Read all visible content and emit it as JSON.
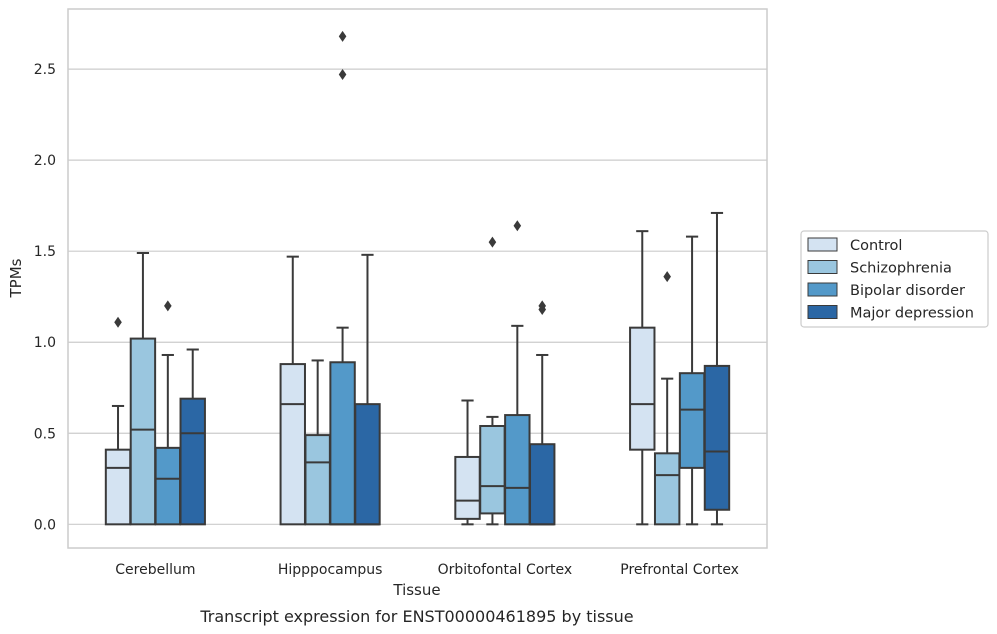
{
  "chart_data": {
    "type": "box",
    "title": "",
    "caption": "Transcript expression for ENST00000461895 by tissue",
    "xlabel": "Tissue",
    "ylabel": "TPMs",
    "ylim": [
      -0.13,
      2.83
    ],
    "yticks": [
      "0.0",
      "0.5",
      "1.0",
      "1.5",
      "2.0",
      "2.5"
    ],
    "grid": "horizontal",
    "legend_position": "right",
    "categories": [
      "Cerebellum",
      "Hipppocampus",
      "Orbitofontal Cortex",
      "Prefrontal Cortex"
    ],
    "series": [
      {
        "name": "Control",
        "color": "#d4e3f2",
        "boxes": [
          {
            "min": 0.0,
            "q1": 0.0,
            "median": 0.31,
            "q3": 0.41,
            "max": 0.65,
            "fliers": [
              1.11
            ]
          },
          {
            "min": 0.0,
            "q1": 0.0,
            "median": 0.66,
            "q3": 0.88,
            "max": 1.47,
            "fliers": []
          },
          {
            "min": 0.0,
            "q1": 0.03,
            "median": 0.13,
            "q3": 0.37,
            "max": 0.68,
            "fliers": []
          },
          {
            "min": 0.0,
            "q1": 0.41,
            "median": 0.66,
            "q3": 1.08,
            "max": 1.61,
            "fliers": []
          }
        ]
      },
      {
        "name": "Schizophrenia",
        "color": "#9ac6df",
        "boxes": [
          {
            "min": 0.0,
            "q1": 0.0,
            "median": 0.52,
            "q3": 1.02,
            "max": 1.49,
            "fliers": []
          },
          {
            "min": 0.0,
            "q1": 0.0,
            "median": 0.34,
            "q3": 0.49,
            "max": 0.9,
            "fliers": []
          },
          {
            "min": 0.0,
            "q1": 0.06,
            "median": 0.21,
            "q3": 0.54,
            "max": 0.59,
            "fliers": [
              1.55
            ]
          },
          {
            "min": 0.0,
            "q1": 0.0,
            "median": 0.27,
            "q3": 0.39,
            "max": 0.8,
            "fliers": [
              1.36
            ]
          }
        ]
      },
      {
        "name": "Bipolar disorder",
        "color": "#5399c9",
        "boxes": [
          {
            "min": 0.0,
            "q1": 0.0,
            "median": 0.25,
            "q3": 0.42,
            "max": 0.93,
            "fliers": [
              1.2
            ]
          },
          {
            "min": 0.0,
            "q1": 0.0,
            "median": 0.0,
            "q3": 0.89,
            "max": 1.08,
            "fliers": [
              2.68,
              2.47
            ]
          },
          {
            "min": 0.0,
            "q1": 0.0,
            "median": 0.2,
            "q3": 0.6,
            "max": 1.09,
            "fliers": [
              1.64
            ]
          },
          {
            "min": 0.0,
            "q1": 0.31,
            "median": 0.63,
            "q3": 0.83,
            "max": 1.58,
            "fliers": []
          }
        ]
      },
      {
        "name": "Major depression",
        "color": "#2b67a5",
        "boxes": [
          {
            "min": 0.0,
            "q1": 0.0,
            "median": 0.5,
            "q3": 0.69,
            "max": 0.96,
            "fliers": []
          },
          {
            "min": 0.0,
            "q1": 0.0,
            "median": 0.0,
            "q3": 0.66,
            "max": 1.48,
            "fliers": []
          },
          {
            "min": 0.0,
            "q1": 0.0,
            "median": 0.0,
            "q3": 0.44,
            "max": 0.93,
            "fliers": [
              1.2,
              1.18
            ]
          },
          {
            "min": 0.0,
            "q1": 0.08,
            "median": 0.4,
            "q3": 0.87,
            "max": 1.71,
            "fliers": []
          }
        ]
      }
    ]
  }
}
